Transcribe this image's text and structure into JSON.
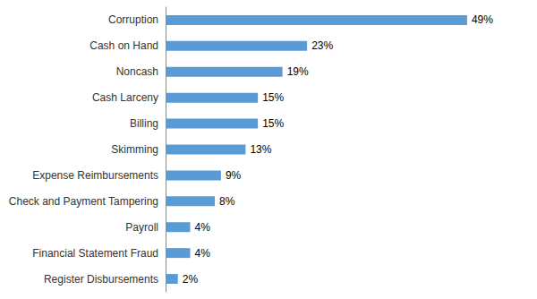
{
  "chart_data": {
    "type": "bar",
    "orientation": "horizontal",
    "categories": [
      "Register Disbursements",
      "Financial Statement Fraud",
      "Payroll",
      "Check and Payment Tampering",
      "Expense Reimbursements",
      "Skimming",
      "Billing",
      "Cash Larceny",
      "Noncash",
      "Cash on Hand",
      "Corruption"
    ],
    "values": [
      2,
      4,
      4,
      8,
      9,
      13,
      15,
      15,
      19,
      23,
      49
    ],
    "value_labels": [
      "2%",
      "4%",
      "4%",
      "8%",
      "9%",
      "13%",
      "15%",
      "15%",
      "19%",
      "23%",
      "49%"
    ],
    "color": "#5B9BD5",
    "xlim": [
      0,
      56
    ],
    "grid": false,
    "data_labels": true,
    "tick_labels": "y"
  }
}
